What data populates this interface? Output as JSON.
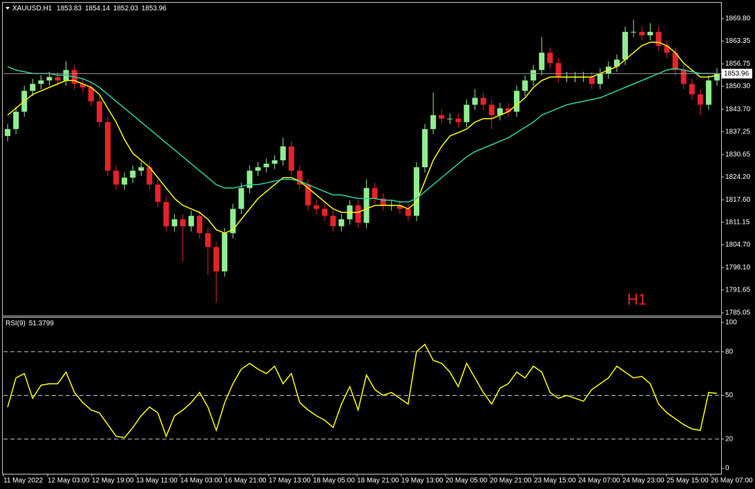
{
  "chart_data": [
    {
      "type": "candlestick",
      "symbol": "XAUUSD,H1",
      "ohlc": [
        1853.83,
        1854.14,
        1852.03,
        1853.96
      ],
      "watermark": "H1",
      "bull_color": "#90ee90",
      "bear_color": "#e8222a",
      "price_line_color": "#9a9a9a",
      "grid": false,
      "ylim": [
        1784.25,
        1874.18
      ],
      "yticks": [
        {
          "value": 1869.8,
          "label": "1869.80"
        },
        1863.35,
        1856.75,
        {
          "value": 1850.3,
          "label": "1850.30"
        },
        {
          "value": 1843.7,
          "label": "1843.70"
        },
        1837.25,
        1830.65,
        {
          "value": 1824.2,
          "label": "1824.20"
        },
        {
          "value": 1817.6,
          "label": "1817.60"
        },
        1811.15,
        {
          "value": 1804.7,
          "label": "1804.70"
        },
        {
          "value": 1798.1,
          "label": "1798.10"
        },
        1791.65,
        1785.05
      ],
      "x_labels": [
        "11 May 2022",
        "12 May 03:00",
        "12 May 19:00",
        "13 May 11:00",
        "14 May 03:00",
        "16 May 21:00",
        "17 May 13:00",
        "18 May 05:00",
        "18 May 21:00",
        "19 May 13:00",
        "20 May 05:00",
        "20 May 21:00",
        "23 May 15:00",
        "24 May 07:00",
        "24 May 23:00",
        "25 May 15:00",
        "26 May 07:00"
      ],
      "open": [
        1836,
        1838,
        1843,
        1849,
        1851,
        1852,
        1853,
        1852,
        1855,
        1851,
        1850,
        1846,
        1840,
        1826,
        1822,
        1824,
        1826,
        1827,
        1822,
        1817,
        1810,
        1812,
        1810,
        1813,
        1808,
        1804,
        1797,
        1808,
        1815,
        1821,
        1826,
        1827,
        1828,
        1829,
        1833,
        1826,
        1822,
        1816,
        1815,
        1813,
        1810,
        1812,
        1816,
        1811,
        1821,
        1818,
        1816,
        1816,
        1815,
        1813,
        1827,
        1838,
        1842,
        1841,
        1841,
        1840,
        1845,
        1847,
        1845,
        1842,
        1844,
        1843,
        1849,
        1852,
        1855,
        1860,
        1857,
        1853,
        1853,
        1853,
        1853,
        1851,
        1854,
        1856,
        1858,
        1866,
        1866,
        1865,
        1866,
        1862,
        1860,
        1855,
        1851,
        1848,
        1845,
        1852
      ],
      "high": [
        1839.5,
        1844.5,
        1850.5,
        1852.5,
        1853.5,
        1854.5,
        1854.5,
        1857.5,
        1856.5,
        1852.5,
        1851.5,
        1847.5,
        1841.5,
        1827.5,
        1825.5,
        1827.5,
        1828.5,
        1828.5,
        1823.5,
        1818.5,
        1813.5,
        1813.5,
        1814.5,
        1814.5,
        1809.5,
        1805.5,
        1809.5,
        1816.5,
        1822.5,
        1827.5,
        1828.5,
        1829.5,
        1830.5,
        1835.5,
        1834.5,
        1827.5,
        1823.5,
        1817.5,
        1816.5,
        1814.5,
        1813.5,
        1817.5,
        1817.5,
        1823.5,
        1822.5,
        1819.5,
        1817.5,
        1817.5,
        1816.5,
        1828.5,
        1839.5,
        1848.5,
        1843.5,
        1842.5,
        1842.5,
        1846.5,
        1849.5,
        1848.5,
        1846.5,
        1845.5,
        1845.5,
        1850.5,
        1853.5,
        1856.5,
        1864.5,
        1861.5,
        1858.5,
        1854.5,
        1854.5,
        1854.5,
        1854.5,
        1855.5,
        1857.5,
        1859.5,
        1867.5,
        1869.5,
        1867.5,
        1868.5,
        1867.5,
        1863.5,
        1861.5,
        1856.5,
        1852.5,
        1849.5,
        1853.5,
        1855.5
      ],
      "low": [
        1834.5,
        1836.5,
        1841.5,
        1847.5,
        1849.5,
        1850.5,
        1850.5,
        1850.5,
        1849.5,
        1848.5,
        1844.5,
        1838.5,
        1824.5,
        1820.5,
        1820.5,
        1822.5,
        1824.5,
        1820.5,
        1815.5,
        1808.5,
        1808.5,
        1800,
        1808.5,
        1806.5,
        1796,
        1788,
        1795.5,
        1806.5,
        1813.5,
        1819.5,
        1824.5,
        1825.5,
        1826.5,
        1827.5,
        1824.5,
        1820.5,
        1814.5,
        1813.5,
        1811.5,
        1808.5,
        1808.5,
        1810.5,
        1809.5,
        1809.5,
        1816.5,
        1814.5,
        1814.5,
        1813.5,
        1811.5,
        1811.5,
        1825.5,
        1836.5,
        1839.5,
        1839.5,
        1838.5,
        1838.5,
        1843.5,
        1843.5,
        1838,
        1840.5,
        1841.5,
        1841.5,
        1847.5,
        1850.5,
        1853.5,
        1855.5,
        1851.5,
        1851.5,
        1851.5,
        1851.5,
        1849.5,
        1849.5,
        1852.5,
        1854.5,
        1856.5,
        1864.5,
        1863.5,
        1863.5,
        1860.5,
        1858.5,
        1853.5,
        1849.5,
        1846.5,
        1842,
        1843.5,
        1850.5
      ],
      "close": [
        1838,
        1843,
        1849,
        1851,
        1852,
        1853,
        1852,
        1855,
        1851,
        1850,
        1846,
        1840,
        1826,
        1822,
        1824,
        1826,
        1827,
        1822,
        1817,
        1810,
        1812,
        1810,
        1813,
        1808,
        1804,
        1797,
        1808,
        1815,
        1821,
        1826,
        1827,
        1828,
        1829,
        1833,
        1826,
        1822,
        1816,
        1815,
        1813,
        1810,
        1812,
        1816,
        1811,
        1821,
        1818,
        1816,
        1816,
        1815,
        1813,
        1827,
        1838,
        1842,
        1841,
        1841,
        1840,
        1845,
        1847,
        1845,
        1842,
        1844,
        1843,
        1849,
        1852,
        1855,
        1860,
        1857,
        1853,
        1853,
        1853,
        1853,
        1851,
        1854,
        1856,
        1858,
        1866,
        1866,
        1865,
        1866,
        1862,
        1860,
        1855,
        1851,
        1848,
        1845,
        1852,
        1853.96
      ],
      "overlays": [
        {
          "color": "#ffff00",
          "values": [
            1842,
            1844,
            1846,
            1848,
            1849,
            1850,
            1851,
            1852,
            1852,
            1851,
            1850,
            1848,
            1844,
            1840,
            1835,
            1831,
            1829,
            1827,
            1824,
            1821,
            1818,
            1816,
            1815,
            1814,
            1812,
            1809,
            1808,
            1809,
            1812,
            1815,
            1818,
            1820,
            1822,
            1824,
            1824,
            1823,
            1821,
            1819,
            1817,
            1815,
            1814,
            1814,
            1814,
            1815,
            1816,
            1816,
            1816,
            1816,
            1815,
            1817,
            1823,
            1829,
            1833,
            1836,
            1837,
            1838,
            1840,
            1841,
            1841,
            1842,
            1843,
            1845,
            1847,
            1850,
            1852,
            1853,
            1853,
            1853,
            1853,
            1853,
            1853,
            1854,
            1855,
            1856,
            1858,
            1860,
            1862,
            1863,
            1863,
            1862,
            1860,
            1857,
            1855,
            1853,
            1853,
            1853.5
          ]
        },
        {
          "color": "#27d6a0",
          "values": [
            1856,
            1855,
            1854.5,
            1854,
            1854,
            1854,
            1853.5,
            1853.5,
            1853,
            1852.5,
            1851.5,
            1850,
            1848,
            1846,
            1844,
            1842,
            1840,
            1838,
            1836,
            1834,
            1832,
            1830,
            1828,
            1826,
            1824,
            1822,
            1821,
            1821,
            1821.5,
            1822,
            1822,
            1822.5,
            1823,
            1823.5,
            1823.5,
            1823,
            1822,
            1821,
            1820,
            1819,
            1819,
            1818.5,
            1818,
            1818,
            1818,
            1817.5,
            1817.5,
            1817,
            1817,
            1818,
            1820,
            1822,
            1824,
            1826,
            1828,
            1830,
            1831.5,
            1832.5,
            1833.5,
            1834.5,
            1835.5,
            1837,
            1838.5,
            1840,
            1842,
            1843,
            1844,
            1845,
            1845.5,
            1846,
            1846.5,
            1847,
            1848,
            1849,
            1850,
            1851,
            1852,
            1853,
            1854,
            1855,
            1855.5,
            1855,
            1854.5,
            1854,
            1854,
            1854
          ]
        }
      ]
    },
    {
      "type": "line",
      "indicator": "RSI(9)",
      "color": "#ffff00",
      "grid": true,
      "ylim": [
        -3.3,
        102.8
      ],
      "yticks": [
        100,
        80,
        50,
        20,
        0
      ],
      "values": [
        42,
        62,
        65,
        48,
        57,
        58,
        58,
        66,
        52,
        45,
        40,
        38,
        30,
        22,
        21,
        28,
        36,
        42,
        38,
        22,
        36,
        40,
        45,
        52,
        42,
        26,
        45,
        58,
        68,
        72,
        68,
        65,
        70,
        58,
        65,
        45,
        40,
        36,
        33,
        28,
        44,
        56,
        40,
        64,
        54,
        50,
        52,
        48,
        44,
        80,
        85,
        74,
        72,
        66,
        56,
        72,
        62,
        52,
        44,
        55,
        58,
        66,
        62,
        70,
        66,
        52,
        48,
        50,
        48,
        46,
        54,
        58,
        62,
        70,
        66,
        62,
        63,
        58,
        44,
        38,
        34,
        30,
        27,
        26,
        52,
        51.3799
      ]
    }
  ]
}
